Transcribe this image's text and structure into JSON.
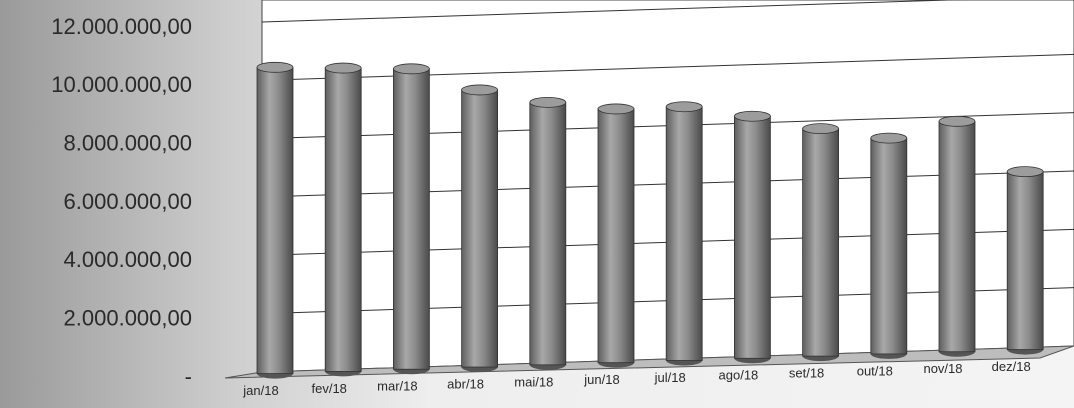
{
  "chart_data": {
    "type": "bar",
    "style": "3d-cylinder",
    "categories": [
      "jan/18",
      "fev/18",
      "mar/18",
      "abr/18",
      "mai/18",
      "jun/18",
      "jul/18",
      "ago/18",
      "set/18",
      "out/18",
      "nov/18",
      "dez/18"
    ],
    "values": [
      10500000,
      10400000,
      10300000,
      9500000,
      9000000,
      8700000,
      8700000,
      8300000,
      7800000,
      7400000,
      7900000,
      6100000
    ],
    "color": "#8a8a8a",
    "ylim": [
      0,
      12000000
    ],
    "yticks": [
      {
        "value": 0,
        "label": "-"
      },
      {
        "value": 2000000,
        "label": "2.000.000,00"
      },
      {
        "value": 4000000,
        "label": "4.000.000,00"
      },
      {
        "value": 6000000,
        "label": "6.000.000,00"
      },
      {
        "value": 8000000,
        "label": "8.000.000,00"
      },
      {
        "value": 10000000,
        "label": "10.000.000,00"
      },
      {
        "value": 12000000,
        "label": "12.000.000,00"
      }
    ],
    "grid": true
  }
}
